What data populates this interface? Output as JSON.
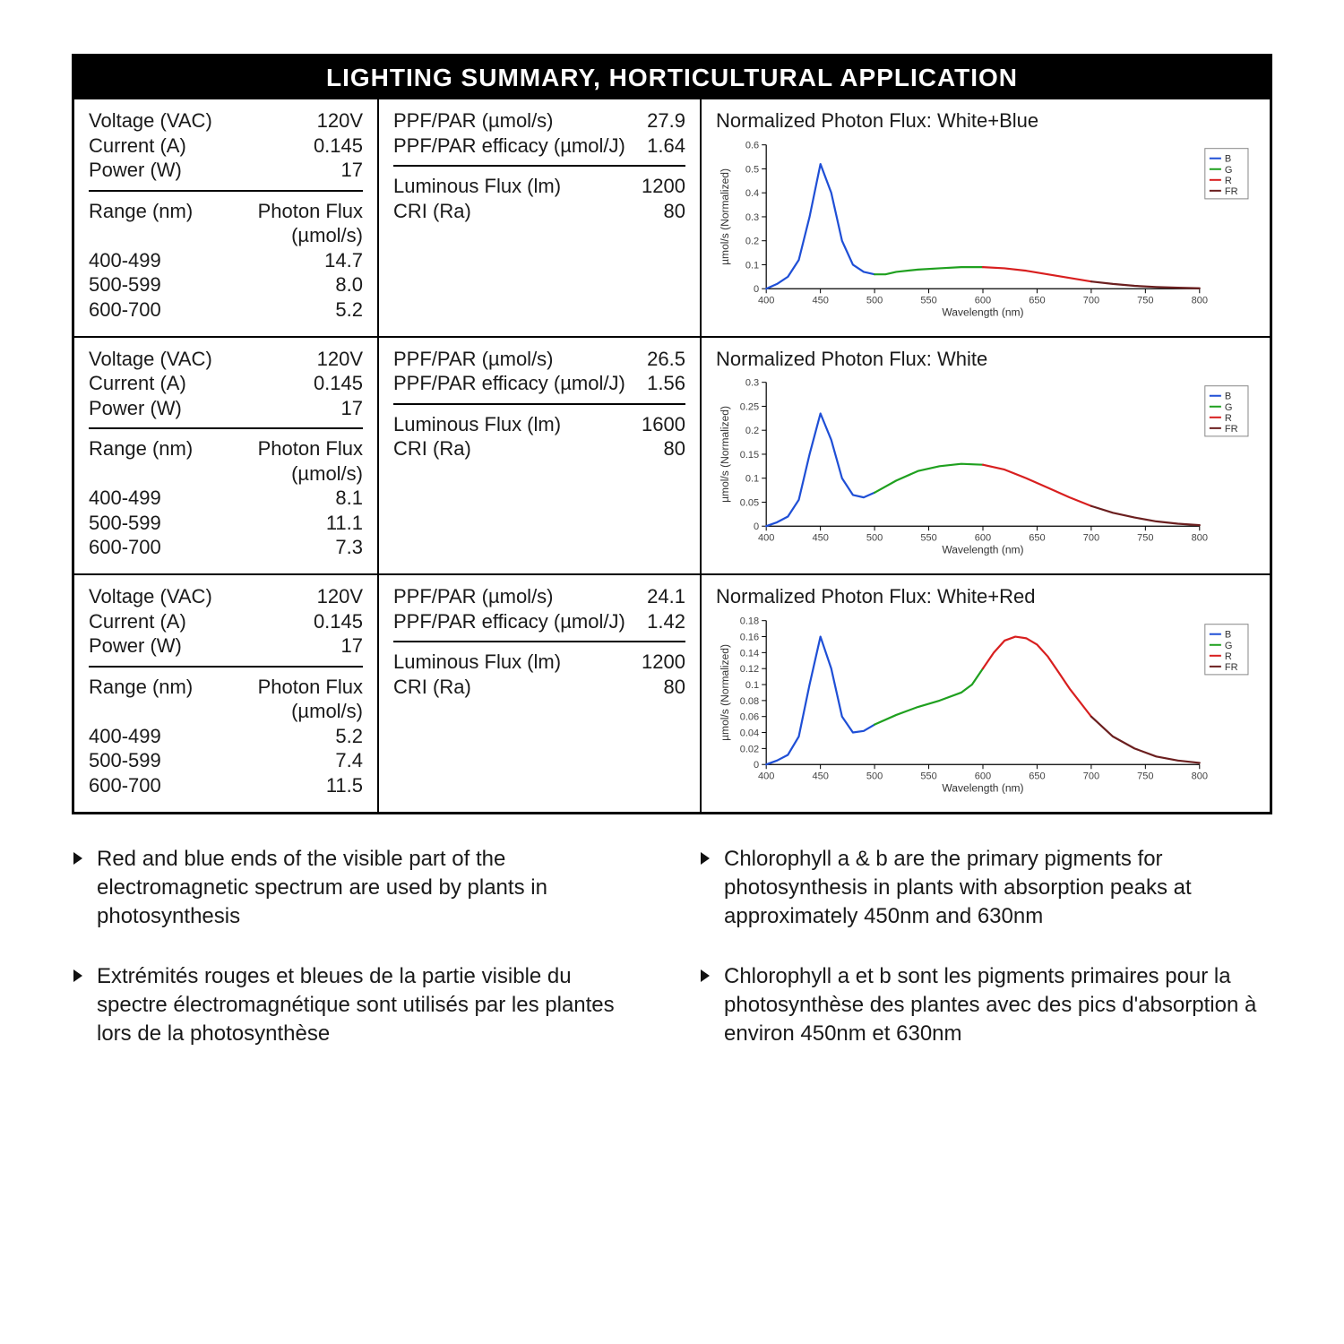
{
  "title": "LIGHTING SUMMARY, HORTICULTURAL APPLICATION",
  "labels": {
    "voltage": "Voltage (VAC)",
    "current": "Current (A)",
    "power": "Power (W)",
    "range": "Range (nm)",
    "photonFlux": "Photon Flux",
    "photonFluxUnit": "(µmol/s)",
    "ppf": "PPF/PAR (µmol/s)",
    "efficacy": "PPF/PAR efficacy (µmol/J)",
    "lumFlux": "Luminous Flux (lm)",
    "cri": "CRI (Ra)",
    "xAxis": "Wavelength (nm)",
    "yAxis": "µmol/s (Normalized)",
    "legend": {
      "b": "B",
      "g": "G",
      "r": "R",
      "fr": "FR"
    }
  },
  "chartStyle": {
    "colors": {
      "b": "#1f4fd6",
      "g": "#1fa01f",
      "r": "#d81f1f",
      "fr": "#6b1f1f"
    },
    "lineWidth": 2.2,
    "axisColor": "#000000",
    "xlim": [
      400,
      800
    ],
    "xticks": [
      400,
      450,
      500,
      550,
      600,
      650,
      700,
      750,
      800
    ]
  },
  "bands": {
    "b": [
      400,
      500
    ],
    "g": [
      500,
      600
    ],
    "r": [
      600,
      700
    ],
    "fr": [
      700,
      800
    ]
  },
  "rows": [
    {
      "voltage": "120V",
      "current": "0.145",
      "power": "17",
      "ppf": "27.9",
      "efficacy": "1.64",
      "lumFlux": "1200",
      "cri": "80",
      "flux": {
        "400-499": "14.7",
        "500-599": "8.0",
        "600-700": "5.2"
      },
      "chart": {
        "title": "Normalized Photon Flux: White+Blue",
        "ylim": [
          0,
          0.6
        ],
        "ytick_step": 0.1,
        "curve": [
          [
            400,
            0.0
          ],
          [
            410,
            0.02
          ],
          [
            420,
            0.05
          ],
          [
            430,
            0.12
          ],
          [
            440,
            0.3
          ],
          [
            450,
            0.52
          ],
          [
            460,
            0.4
          ],
          [
            470,
            0.2
          ],
          [
            480,
            0.1
          ],
          [
            490,
            0.07
          ],
          [
            500,
            0.06
          ],
          [
            510,
            0.06
          ],
          [
            520,
            0.07
          ],
          [
            540,
            0.08
          ],
          [
            560,
            0.085
          ],
          [
            580,
            0.09
          ],
          [
            600,
            0.09
          ],
          [
            620,
            0.085
          ],
          [
            640,
            0.075
          ],
          [
            660,
            0.06
          ],
          [
            680,
            0.045
          ],
          [
            700,
            0.03
          ],
          [
            720,
            0.02
          ],
          [
            740,
            0.012
          ],
          [
            760,
            0.007
          ],
          [
            780,
            0.004
          ],
          [
            800,
            0.002
          ]
        ]
      }
    },
    {
      "voltage": "120V",
      "current": "0.145",
      "power": "17",
      "ppf": "26.5",
      "efficacy": "1.56",
      "lumFlux": "1600",
      "cri": "80",
      "flux": {
        "400-499": "8.1",
        "500-599": "11.1",
        "600-700": "7.3"
      },
      "chart": {
        "title": "Normalized Photon Flux: White",
        "ylim": [
          0,
          0.3
        ],
        "ytick_step": 0.05,
        "curve": [
          [
            400,
            0.0
          ],
          [
            410,
            0.008
          ],
          [
            420,
            0.02
          ],
          [
            430,
            0.055
          ],
          [
            440,
            0.15
          ],
          [
            450,
            0.235
          ],
          [
            460,
            0.18
          ],
          [
            470,
            0.1
          ],
          [
            480,
            0.065
          ],
          [
            490,
            0.06
          ],
          [
            500,
            0.07
          ],
          [
            520,
            0.095
          ],
          [
            540,
            0.115
          ],
          [
            560,
            0.125
          ],
          [
            580,
            0.13
          ],
          [
            600,
            0.128
          ],
          [
            620,
            0.118
          ],
          [
            640,
            0.1
          ],
          [
            660,
            0.08
          ],
          [
            680,
            0.06
          ],
          [
            700,
            0.042
          ],
          [
            720,
            0.028
          ],
          [
            740,
            0.018
          ],
          [
            760,
            0.01
          ],
          [
            780,
            0.005
          ],
          [
            800,
            0.002
          ]
        ]
      }
    },
    {
      "voltage": "120V",
      "current": "0.145",
      "power": "17",
      "ppf": "24.1",
      "efficacy": "1.42",
      "lumFlux": "1200",
      "cri": "80",
      "flux": {
        "400-499": "5.2",
        "500-599": "7.4",
        "600-700": "11.5"
      },
      "chart": {
        "title": "Normalized Photon Flux: White+Red",
        "ylim": [
          0,
          0.18
        ],
        "ytick_step": 0.02,
        "curve": [
          [
            400,
            0.0
          ],
          [
            410,
            0.005
          ],
          [
            420,
            0.012
          ],
          [
            430,
            0.035
          ],
          [
            440,
            0.1
          ],
          [
            450,
            0.16
          ],
          [
            460,
            0.12
          ],
          [
            470,
            0.06
          ],
          [
            480,
            0.04
          ],
          [
            490,
            0.042
          ],
          [
            500,
            0.05
          ],
          [
            520,
            0.062
          ],
          [
            540,
            0.072
          ],
          [
            560,
            0.08
          ],
          [
            580,
            0.09
          ],
          [
            590,
            0.1
          ],
          [
            600,
            0.12
          ],
          [
            610,
            0.14
          ],
          [
            620,
            0.155
          ],
          [
            630,
            0.16
          ],
          [
            640,
            0.158
          ],
          [
            650,
            0.15
          ],
          [
            660,
            0.135
          ],
          [
            670,
            0.115
          ],
          [
            680,
            0.095
          ],
          [
            700,
            0.06
          ],
          [
            720,
            0.035
          ],
          [
            740,
            0.02
          ],
          [
            760,
            0.01
          ],
          [
            780,
            0.005
          ],
          [
            800,
            0.002
          ]
        ]
      }
    }
  ],
  "notes": [
    "Red and blue ends of the visible part of the electromagnetic spectrum are used by plants in photosynthesis",
    "Chlorophyll a & b are the primary pigments for photosynthesis in plants with  absorption peaks at approximately 450nm and 630nm",
    "Extrémités rouges et bleues de la partie visible du spectre électromagnétique sont utilisés par les plantes lors de la photosynthèse",
    "Chlorophyll a et b sont les pigments primaires pour la photosynthèse des plantes avec des pics d'absorption à environ 450nm et 630nm"
  ]
}
